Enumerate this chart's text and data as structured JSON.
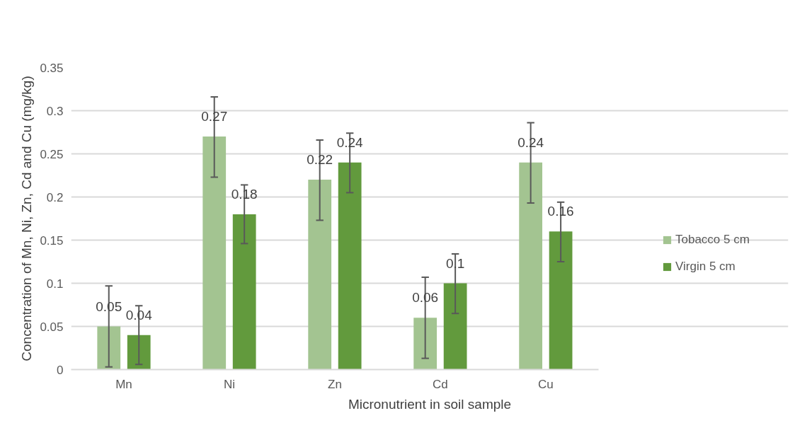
{
  "chart_data": {
    "type": "bar",
    "xlabel": "Micronutrient in soil sample",
    "ylabel": "Concentration of Mn, Ni, Zn, Cd and Cu (mg/kg)",
    "categories": [
      "Mn",
      "Ni",
      "Zn",
      "Cd",
      "Cu"
    ],
    "series": [
      {
        "name": "Tobacco 5 cm",
        "color": "#a3c491",
        "values": [
          0.05,
          0.27,
          0.22,
          0.06,
          0.24
        ],
        "errors": [
          [
            0.003,
            0.097
          ],
          [
            0.223,
            0.316
          ],
          [
            0.173,
            0.266
          ],
          [
            0.013,
            0.107
          ],
          [
            0.193,
            0.286
          ]
        ]
      },
      {
        "name": "Virgin 5 cm",
        "color": "#629a3d",
        "values": [
          0.04,
          0.18,
          0.24,
          0.1,
          0.16
        ],
        "errors": [
          [
            0.006,
            0.074
          ],
          [
            0.146,
            0.214
          ],
          [
            0.205,
            0.274
          ],
          [
            0.065,
            0.134
          ],
          [
            0.125,
            0.194
          ]
        ]
      }
    ],
    "ylim": [
      0,
      0.35
    ],
    "yticks": [
      0,
      0.05,
      0.1,
      0.15,
      0.2,
      0.25,
      0.3,
      0.35
    ],
    "grid": "y",
    "legend": "right",
    "data_labels": true
  }
}
